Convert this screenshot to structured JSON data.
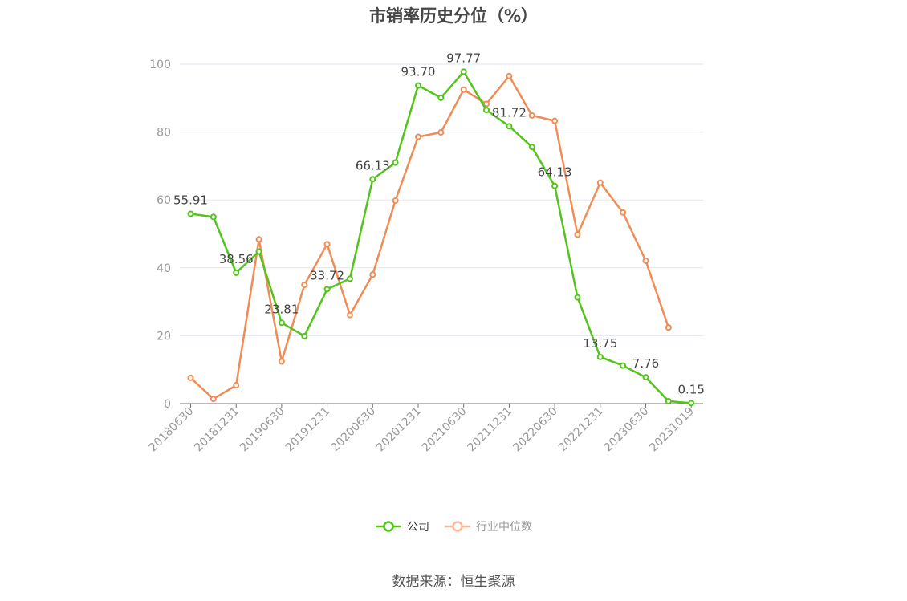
{
  "chart_data": {
    "type": "line",
    "title": "市销率历史分位（%）",
    "xlabel": "",
    "ylabel": "",
    "ylim": [
      0,
      100
    ],
    "yticks": [
      0,
      20,
      40,
      60,
      80,
      100
    ],
    "grid": true,
    "legend_position": "bottom",
    "x": [
      "20180630",
      "20180930",
      "20181231",
      "20190331",
      "20190630",
      "20190930",
      "20191231",
      "20200331",
      "20200630",
      "20200930",
      "20201231",
      "20210331",
      "20210630",
      "20210930",
      "20211231",
      "20220331",
      "20220630",
      "20220930",
      "20221231",
      "20230331",
      "20230630",
      "20230930",
      "20231019"
    ],
    "x_tick_labels": [
      "20180630",
      "20181231",
      "20190630",
      "20191231",
      "20200630",
      "20201231",
      "20210630",
      "20211231",
      "20220630",
      "20221231",
      "20230630",
      "20231019"
    ],
    "series": [
      {
        "name": "公司",
        "color": "#52c41a",
        "values": [
          55.91,
          55.0,
          38.56,
          44.8,
          23.81,
          19.9,
          33.72,
          36.8,
          66.13,
          71.0,
          93.7,
          90.1,
          97.77,
          86.5,
          81.72,
          75.6,
          64.13,
          31.3,
          13.75,
          11.2,
          7.76,
          0.7,
          0.15
        ],
        "labels": [
          "55.91",
          "",
          "38.56",
          "",
          "23.81",
          "",
          "33.72",
          "",
          "66.13",
          "",
          "93.70",
          "",
          "97.77",
          "",
          "81.72",
          "",
          "64.13",
          "",
          "13.75",
          "",
          "7.76",
          "",
          "0.15"
        ]
      },
      {
        "name": "行业中位数",
        "color": "#f08c55",
        "values": [
          7.6,
          1.4,
          5.4,
          48.4,
          12.4,
          35.0,
          47.0,
          26.1,
          38.0,
          59.8,
          78.6,
          79.9,
          92.5,
          88.3,
          96.5,
          84.9,
          83.3,
          49.8,
          65.1,
          56.3,
          42.1,
          22.4,
          null
        ],
        "labels": []
      }
    ]
  },
  "source_text": "数据来源：恒生聚源"
}
